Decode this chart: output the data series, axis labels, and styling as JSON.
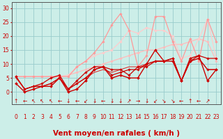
{
  "background_color": "#cceee8",
  "grid_color": "#99cccc",
  "x_label": "Vent moyen/en rafales ( km/h )",
  "x_ticks": [
    0,
    1,
    2,
    3,
    4,
    5,
    6,
    7,
    8,
    9,
    10,
    11,
    12,
    13,
    14,
    15,
    16,
    17,
    18,
    19,
    20,
    21,
    22,
    23
  ],
  "y_ticks": [
    0,
    5,
    10,
    15,
    20,
    25,
    30
  ],
  "ylim": [
    -4.5,
    32
  ],
  "xlim": [
    -0.5,
    23.5
  ],
  "series": [
    {
      "x": [
        0,
        1,
        2,
        3,
        4,
        5,
        6,
        7,
        8,
        9,
        10,
        11,
        12,
        13,
        14,
        15,
        16,
        17,
        18,
        19,
        20,
        21,
        22,
        23
      ],
      "y": [
        5.5,
        5.5,
        5.5,
        5.5,
        5.5,
        5.5,
        6,
        7,
        8,
        9,
        10,
        11,
        12,
        13,
        14,
        15,
        15,
        16,
        17,
        17,
        18,
        19,
        18,
        11
      ],
      "color": "#ffbbbb",
      "lw": 0.9,
      "marker": "D",
      "ms": 1.8,
      "zorder": 2
    },
    {
      "x": [
        0,
        1,
        2,
        3,
        4,
        5,
        6,
        7,
        8,
        9,
        10,
        11,
        12,
        13,
        14,
        15,
        16,
        17,
        18,
        19,
        20,
        21,
        22,
        23
      ],
      "y": [
        5.5,
        5.5,
        5.5,
        5.5,
        5.5,
        5.5,
        6,
        9,
        11,
        13,
        14,
        15,
        18,
        22,
        21,
        23,
        22,
        22,
        20,
        12,
        13,
        19,
        26,
        12
      ],
      "color": "#ffcccc",
      "lw": 0.9,
      "marker": "D",
      "ms": 1.8,
      "zorder": 2
    },
    {
      "x": [
        0,
        1,
        2,
        3,
        4,
        5,
        6,
        7,
        8,
        9,
        10,
        11,
        12,
        13,
        14,
        15,
        16,
        17,
        18,
        19,
        20,
        21,
        22,
        23
      ],
      "y": [
        5.5,
        5.5,
        5.5,
        5.5,
        5.5,
        5.5,
        5.5,
        9,
        11,
        14,
        18,
        24,
        28,
        22,
        9,
        13,
        27,
        27,
        18,
        11,
        19,
        11,
        26,
        18
      ],
      "color": "#ff9999",
      "lw": 0.9,
      "marker": "D",
      "ms": 1.8,
      "zorder": 3
    },
    {
      "x": [
        0,
        1,
        2,
        3,
        4,
        5,
        6,
        7,
        8,
        9,
        10,
        11,
        12,
        13,
        14,
        15,
        16,
        17,
        18,
        19,
        20,
        21,
        22,
        23
      ],
      "y": [
        3,
        0,
        1,
        2,
        2,
        5,
        0,
        1,
        4,
        8,
        9,
        5,
        6,
        5,
        5,
        10,
        15,
        11,
        11,
        4,
        12,
        13,
        4,
        8
      ],
      "color": "#cc0000",
      "lw": 1.0,
      "marker": "D",
      "ms": 2.0,
      "zorder": 4
    },
    {
      "x": [
        0,
        1,
        2,
        3,
        4,
        5,
        6,
        7,
        8,
        9,
        10,
        11,
        12,
        13,
        14,
        15,
        16,
        17,
        18,
        19,
        20,
        21,
        22,
        23
      ],
      "y": [
        5.5,
        1,
        2,
        2,
        3,
        5,
        1,
        3,
        5,
        8,
        9,
        6,
        7,
        8,
        8,
        10,
        11,
        11,
        12,
        4,
        11,
        12,
        8,
        8
      ],
      "color": "#cc0000",
      "lw": 0.9,
      "marker": "D",
      "ms": 1.8,
      "zorder": 4
    },
    {
      "x": [
        0,
        1,
        2,
        3,
        4,
        5,
        6,
        7,
        8,
        9,
        10,
        11,
        12,
        13,
        14,
        15,
        16,
        17,
        18,
        19,
        20,
        21,
        22,
        23
      ],
      "y": [
        5.5,
        1,
        2,
        3,
        5,
        6,
        1,
        4,
        7,
        9,
        9,
        8,
        8,
        6,
        9,
        9,
        11,
        11,
        12,
        4,
        11,
        13,
        12,
        12
      ],
      "color": "#cc0000",
      "lw": 0.9,
      "marker": "D",
      "ms": 1.8,
      "zorder": 4
    },
    {
      "x": [
        0,
        1,
        2,
        3,
        4,
        5,
        6,
        7,
        8,
        9,
        10,
        11,
        12,
        13,
        14,
        15,
        16,
        17,
        18,
        19,
        20,
        21,
        22,
        23
      ],
      "y": [
        5,
        1,
        2,
        2,
        3,
        5,
        1,
        3,
        5,
        7,
        8,
        7,
        8,
        9,
        9,
        10,
        11,
        11,
        12,
        4,
        11,
        12,
        8,
        8
      ],
      "color": "#dd2222",
      "lw": 0.7,
      "marker": null,
      "ms": 0,
      "zorder": 3
    }
  ],
  "arrows": [
    "↑",
    "←",
    "↖",
    "↖",
    "↖",
    "←",
    "↓",
    "←",
    "↙",
    "↓",
    "←",
    "↓",
    "↓",
    "↗",
    "→",
    "↓",
    "↙",
    "↘",
    "↘",
    "←",
    "↑",
    "←",
    "↗"
  ],
  "axis_color": "#555555",
  "tick_label_color": "#cc0000",
  "xlabel_color": "#cc0000",
  "xlabel_fontsize": 7.5,
  "tick_fontsize": 5.5,
  "arrow_fontsize": 5.5
}
